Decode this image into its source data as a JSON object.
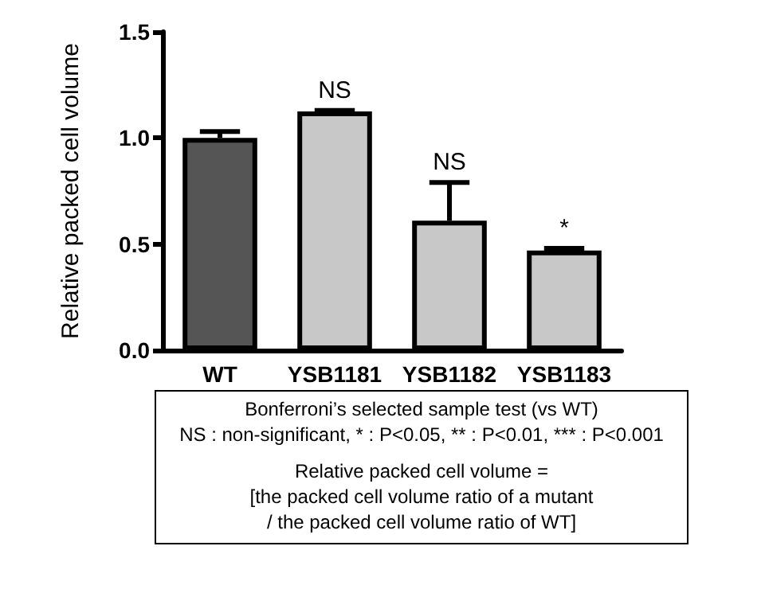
{
  "chart_data": {
    "type": "bar",
    "ylabel": "Relative packed cell volume",
    "categories": [
      "WT",
      "YSB1181",
      "YSB1182",
      "YSB1183"
    ],
    "values": [
      1.0,
      1.125,
      0.61,
      0.47
    ],
    "colors": [
      "#555555",
      "#c8c8c8",
      "#c8c8c8",
      "#c8c8c8"
    ],
    "errors": [
      [
        1.0,
        1.03
      ],
      [
        1.125,
        1.13
      ],
      [
        0.61,
        0.79
      ],
      [
        0.47,
        0.48
      ]
    ],
    "ylim": [
      0,
      1.5
    ],
    "yticks": [
      {
        "value": 0,
        "label": "0.0"
      },
      {
        "value": 0.5,
        "label": "0.5"
      },
      {
        "value": 1,
        "label": "1.0"
      },
      {
        "value": 1.5,
        "label": "1.5"
      }
    ],
    "grid": false,
    "annotations": [
      {
        "text": "NS",
        "x": "YSB1181",
        "y": 1.13
      },
      {
        "text": "NS",
        "x": "YSB1182",
        "y": 0.79
      },
      {
        "text": "*",
        "x": "YSB1183",
        "y": 0.48
      },
      "Bonferroni’s selected sample test (vs WT)",
      "NS : non-significant, * : P<0.05, ** : P<0.01, *** : P<0.001",
      "Relative packed cell volume =",
      "[the packed cell volume ratio of a mutant",
      "/ the packed cell volume ratio of WT]"
    ]
  }
}
